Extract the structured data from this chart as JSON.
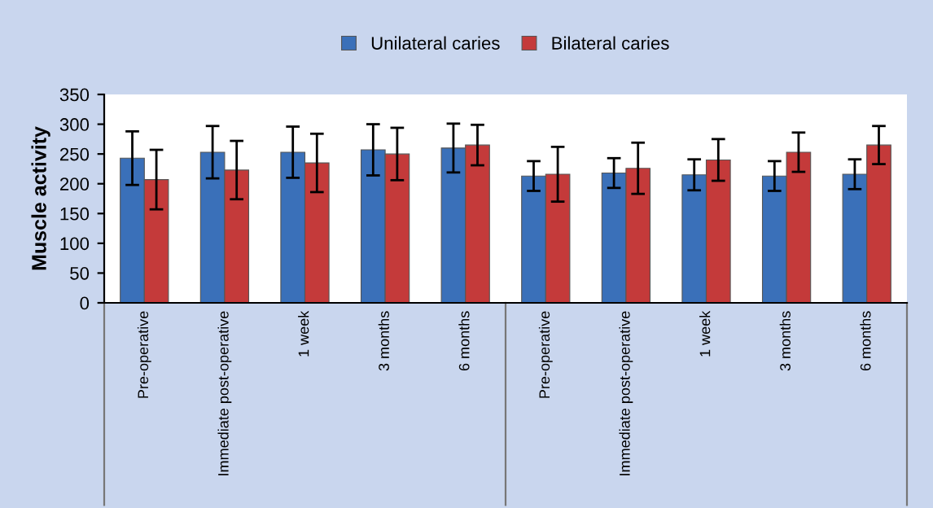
{
  "chart_data": {
    "type": "bar",
    "ylabel": "Muscle activity",
    "categories": [
      "Pre-operative",
      "Immediate post-operative",
      "1 week",
      "3 months",
      "6 months",
      "Pre-operative",
      "Immediate post-operative",
      "1 week",
      "3 months",
      "6 months"
    ],
    "series": [
      {
        "name": "Unilateral caries",
        "color": "#3a70b9",
        "values": [
          243,
          253,
          253,
          257,
          260,
          213,
          218,
          215,
          213,
          216
        ],
        "errors": [
          45,
          44,
          43,
          43,
          41,
          25,
          25,
          26,
          25,
          25
        ]
      },
      {
        "name": "Bilateral caries",
        "color": "#c43a3a",
        "values": [
          207,
          223,
          235,
          250,
          265,
          216,
          226,
          240,
          253,
          265
        ],
        "errors": [
          50,
          49,
          49,
          44,
          34,
          46,
          43,
          35,
          33,
          32
        ]
      }
    ],
    "ylim": [
      0,
      350
    ],
    "yticks": [
      0,
      50,
      100,
      150,
      200,
      250,
      300,
      350
    ],
    "grid": false,
    "legend": "top"
  }
}
